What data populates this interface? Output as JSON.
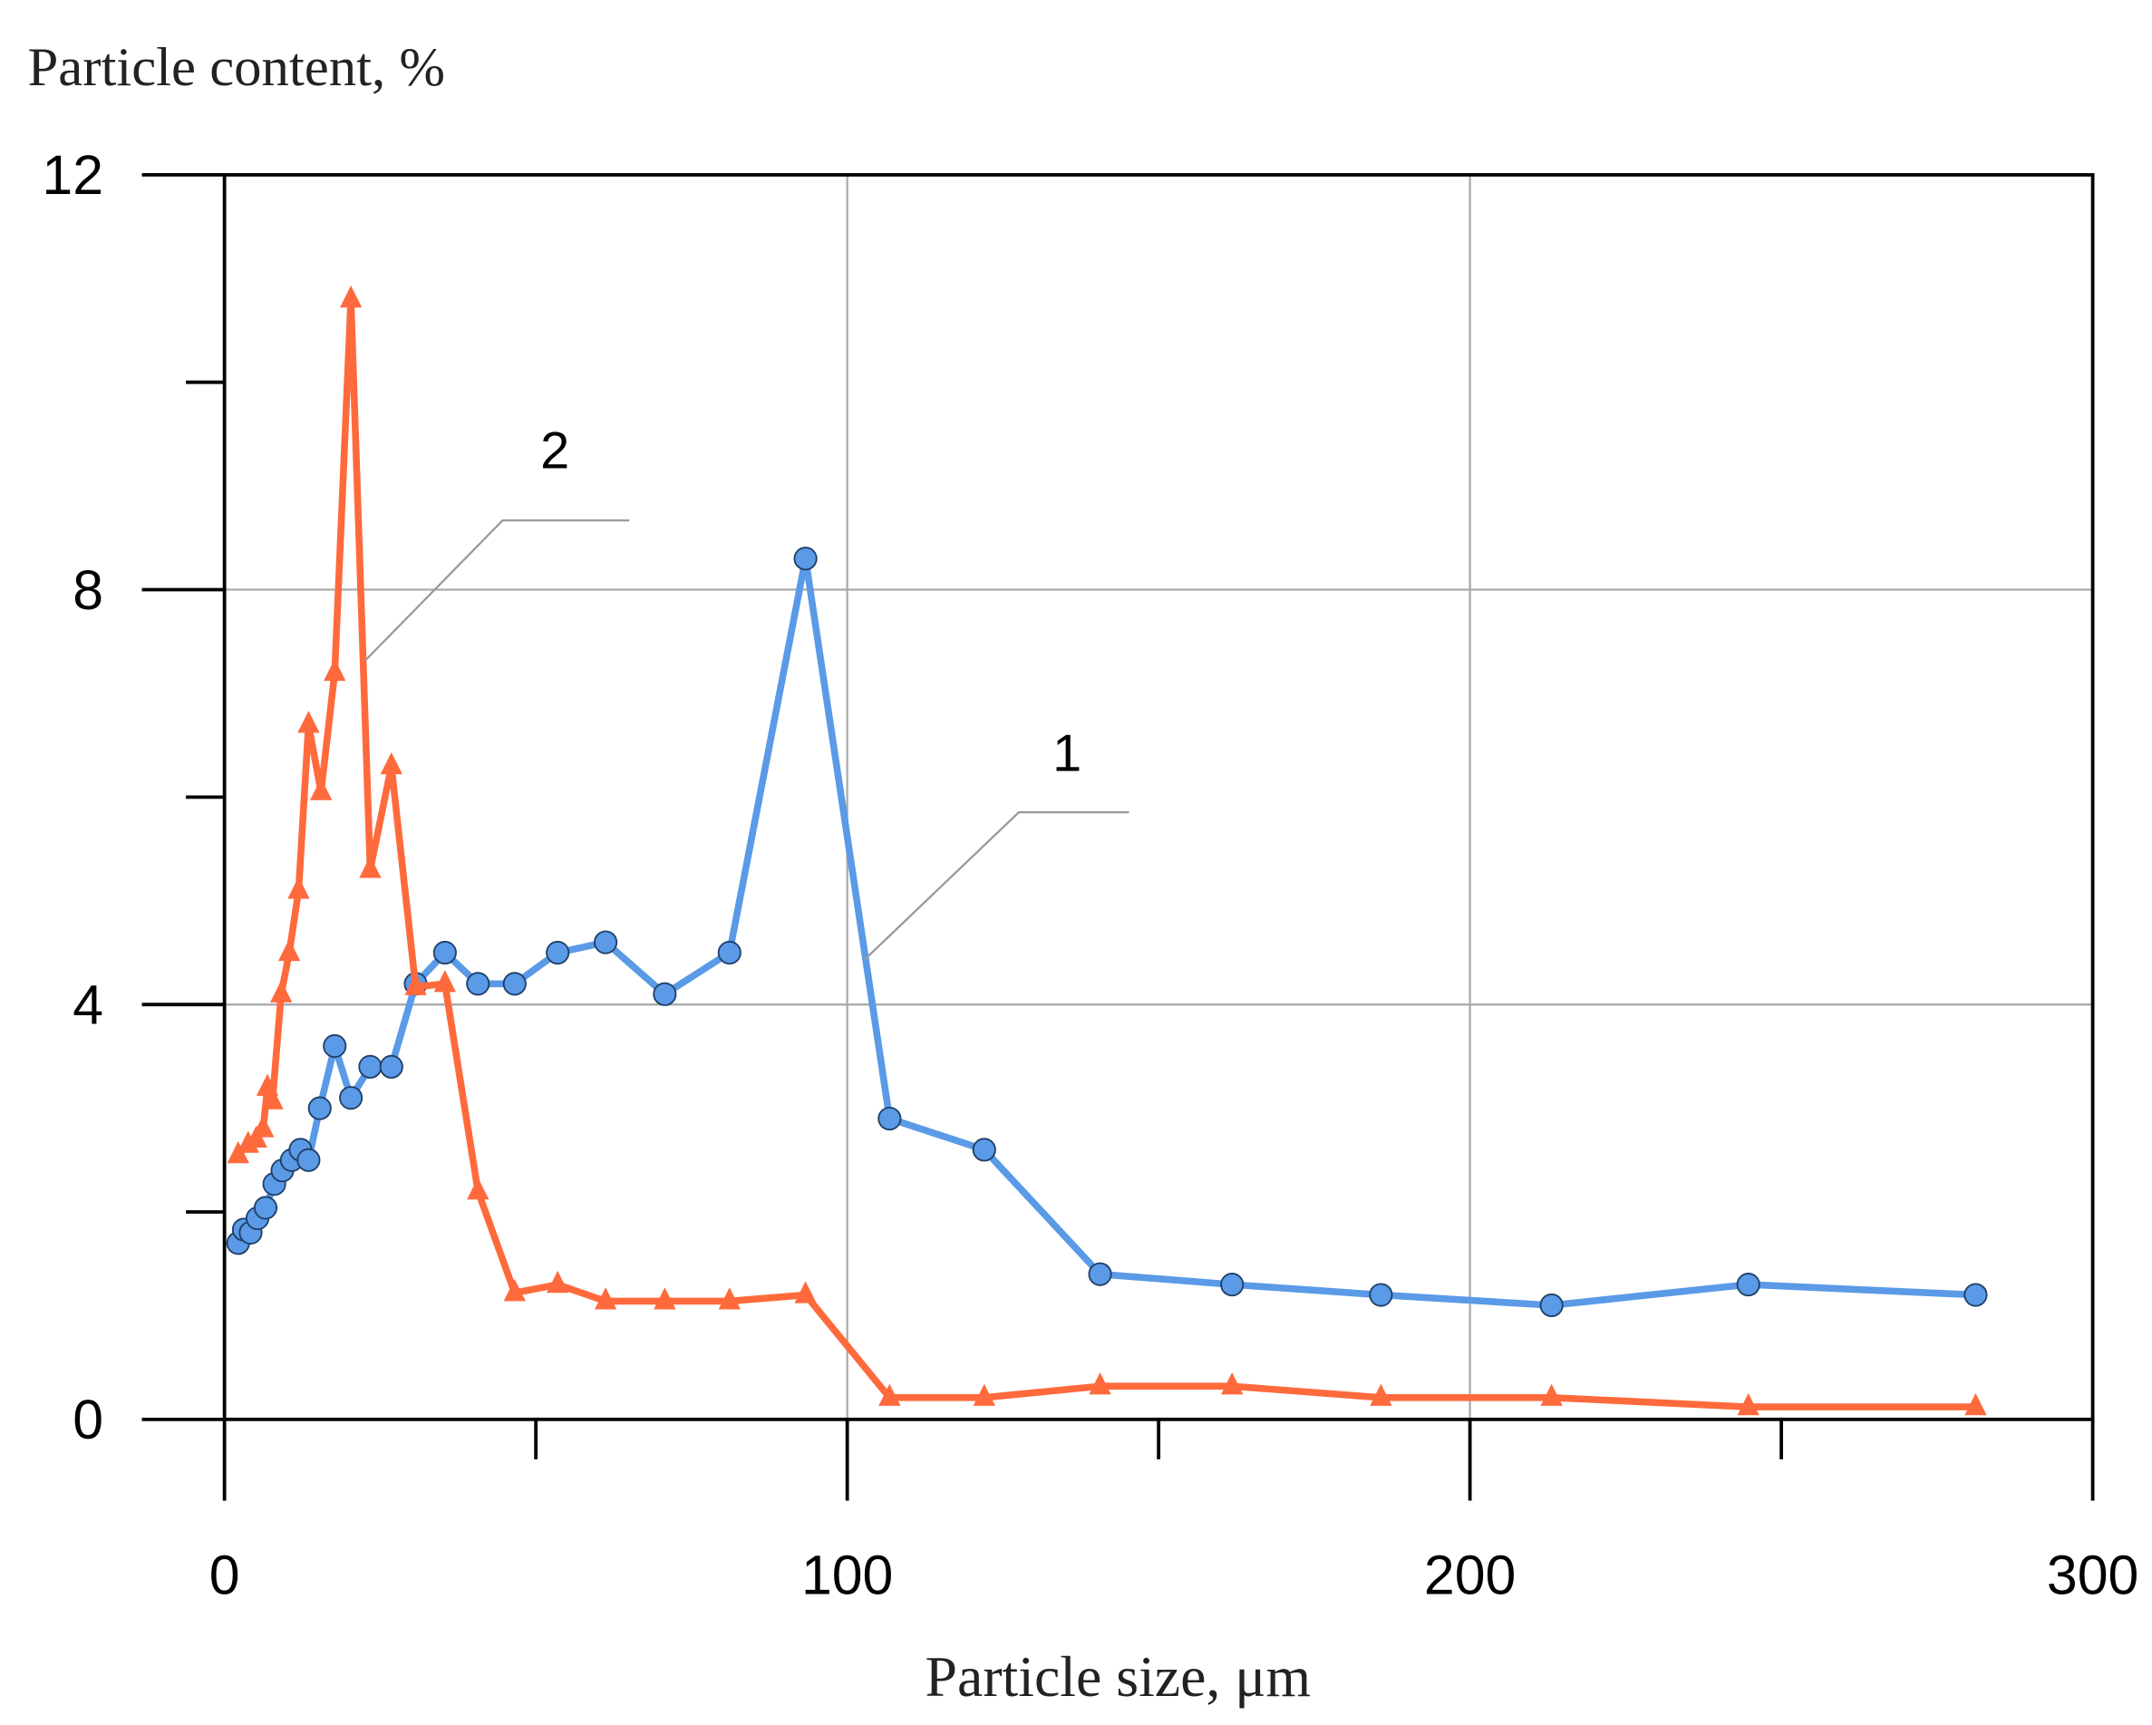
{
  "chart_data": {
    "type": "line",
    "title": "Particle content, %",
    "x_label": "Particle size, μm",
    "xlim": [
      0,
      300
    ],
    "ylim": [
      0,
      12
    ],
    "xticks": [
      0,
      100,
      200,
      300
    ],
    "yticks": [
      0,
      4,
      8,
      12
    ],
    "minor_xticks": [
      50,
      150,
      250
    ],
    "minor_yticks": [
      2,
      6,
      10
    ],
    "grid": true,
    "series": [
      {
        "name": "1",
        "color": "#5a9ae6",
        "marker": "circle",
        "x": [
          2.2,
          3.1,
          4.2,
          5.3,
          6.6,
          8.0,
          9.3,
          10.8,
          12.2,
          13.5,
          15.3,
          17.7,
          20.3,
          23.4,
          26.8,
          30.7,
          35.4,
          40.7,
          46.6,
          53.5,
          61.2,
          70.7,
          81.1,
          93.3,
          106.8,
          122.0,
          140.6,
          161.8,
          185.7,
          213.1,
          244.7,
          281.2
        ],
        "values": [
          1.7,
          1.83,
          1.8,
          1.94,
          2.04,
          2.27,
          2.4,
          2.5,
          2.6,
          2.5,
          3.0,
          3.6,
          3.1,
          3.4,
          3.4,
          4.2,
          4.5,
          4.2,
          4.2,
          4.5,
          4.6,
          4.1,
          4.5,
          8.3,
          2.9,
          2.6,
          1.4,
          1.3,
          1.2,
          1.1,
          1.3,
          1.2
        ]
      },
      {
        "name": "2",
        "color": "#ff6a3d",
        "marker": "triangle",
        "x": [
          2.2,
          3.8,
          5.1,
          6.2,
          6.9,
          7.7,
          9.1,
          10.4,
          11.9,
          13.5,
          15.5,
          17.7,
          20.3,
          23.4,
          26.8,
          30.7,
          35.4,
          40.7,
          46.6,
          53.5,
          61.2,
          70.7,
          81.1,
          93.3,
          106.8,
          122.0,
          140.6,
          161.8,
          185.7,
          213.1,
          244.7,
          281.2
        ],
        "values": [
          2.55,
          2.65,
          2.7,
          2.8,
          3.2,
          3.07,
          4.1,
          4.5,
          5.1,
          6.7,
          6.05,
          7.2,
          10.8,
          5.3,
          6.3,
          4.17,
          4.2,
          2.2,
          1.22,
          1.3,
          1.14,
          1.14,
          1.14,
          1.2,
          0.21,
          0.21,
          0.32,
          0.32,
          0.21,
          0.21,
          0.12,
          0.12
        ]
      }
    ]
  }
}
